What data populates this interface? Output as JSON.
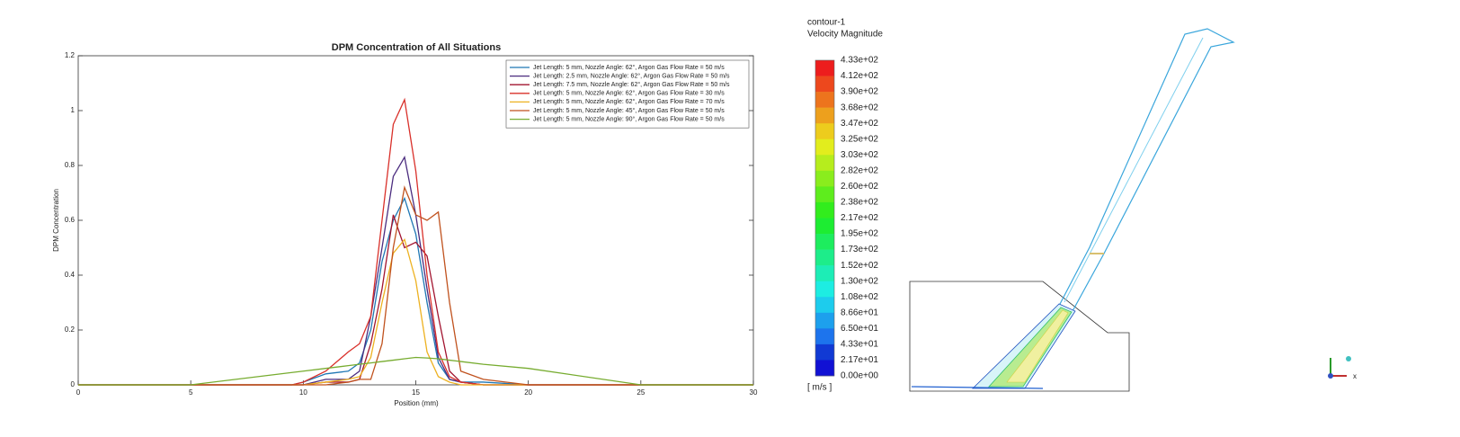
{
  "chart_data": {
    "type": "line",
    "title": "DPM Concentration of All Situations",
    "x_label": "Position (mm)",
    "y_label": "DPM Concentration",
    "x": [
      0,
      5,
      9.5,
      10,
      11,
      12,
      12.5,
      13,
      13.5,
      14,
      14.5,
      15,
      15.5,
      16,
      16.5,
      17,
      18,
      20,
      25,
      30
    ],
    "series": [
      {
        "name": "Jet Length: 5 mm, Nozzle Angle: 62°, Argon Gas Flow Rate = 50 m/s",
        "color": "#1f77b4",
        "values": [
          0,
          0,
          0,
          0.01,
          0.04,
          0.05,
          0.08,
          0.2,
          0.45,
          0.6,
          0.68,
          0.55,
          0.3,
          0.08,
          0.02,
          0.01,
          0.01,
          0,
          0,
          0
        ]
      },
      {
        "name": "Jet Length: 2.5 mm, Nozzle Angle: 62°, Argon Gas Flow Rate = 50 m/s",
        "color": "#4b2c7f",
        "values": [
          0,
          0,
          0,
          0,
          0.02,
          0.02,
          0.05,
          0.25,
          0.5,
          0.76,
          0.83,
          0.62,
          0.35,
          0.1,
          0.02,
          0.01,
          0,
          0,
          0,
          0
        ]
      },
      {
        "name": "Jet Length: 7.5 mm, Nozzle Angle: 62°, Argon Gas Flow Rate = 50 m/s",
        "color": "#a2142f",
        "values": [
          0,
          0,
          0,
          0,
          0.01,
          0.01,
          0.02,
          0.15,
          0.35,
          0.62,
          0.5,
          0.52,
          0.47,
          0.25,
          0.05,
          0.01,
          0,
          0,
          0,
          0
        ]
      },
      {
        "name": "Jet Length: 5 mm, Nozzle Angle: 62°, Argon Gas Flow Rate = 30 m/s",
        "color": "#d9302a",
        "values": [
          0,
          0,
          0,
          0.01,
          0.05,
          0.12,
          0.15,
          0.25,
          0.6,
          0.95,
          1.04,
          0.78,
          0.4,
          0.12,
          0.03,
          0.01,
          0,
          0,
          0,
          0
        ]
      },
      {
        "name": "Jet Length: 5 mm, Nozzle Angle: 62°, Argon Gas Flow Rate = 70 m/s",
        "color": "#edb120",
        "values": [
          0,
          0,
          0,
          0,
          0.01,
          0.02,
          0.03,
          0.1,
          0.3,
          0.48,
          0.53,
          0.38,
          0.12,
          0.03,
          0.01,
          0,
          0,
          0,
          0,
          0
        ]
      },
      {
        "name": "Jet Length: 5 mm, Nozzle Angle: 45°, Argon Gas Flow Rate = 50 m/s",
        "color": "#c0521e",
        "values": [
          0,
          0,
          0,
          0,
          0,
          0.01,
          0.02,
          0.02,
          0.15,
          0.5,
          0.72,
          0.62,
          0.6,
          0.63,
          0.3,
          0.05,
          0.02,
          0,
          0,
          0
        ]
      },
      {
        "name": "Jet Length: 5 mm, Nozzle Angle: 90°, Argon Gas Flow Rate = 50 m/s",
        "color": "#77ac30",
        "values": [
          0,
          0,
          0.045,
          0.05,
          0.06,
          0.07,
          0.075,
          0.08,
          0.085,
          0.09,
          0.095,
          0.1,
          0.098,
          0.095,
          0.09,
          0.085,
          0.075,
          0.06,
          0,
          0
        ]
      }
    ],
    "xlim": [
      0,
      30
    ],
    "xticks": [
      0,
      5,
      10,
      15,
      20,
      25,
      30
    ],
    "ylim": [
      0,
      1.2
    ],
    "yticks": [
      0,
      0.2,
      0.4,
      0.6,
      0.8,
      1,
      1.2
    ],
    "legend": "upper right"
  },
  "contour": {
    "title": "contour-1",
    "variable": "Velocity Magnitude",
    "levels": [
      "4.33e+02",
      "4.12e+02",
      "3.90e+02",
      "3.68e+02",
      "3.47e+02",
      "3.25e+02",
      "3.03e+02",
      "2.82e+02",
      "2.60e+02",
      "2.38e+02",
      "2.17e+02",
      "1.95e+02",
      "1.73e+02",
      "1.52e+02",
      "1.30e+02",
      "1.08e+02",
      "8.66e+01",
      "6.50e+01",
      "4.33e+01",
      "2.17e+01",
      "0.00e+00"
    ],
    "unit": "[ m/s ]",
    "axis_label": "x"
  }
}
